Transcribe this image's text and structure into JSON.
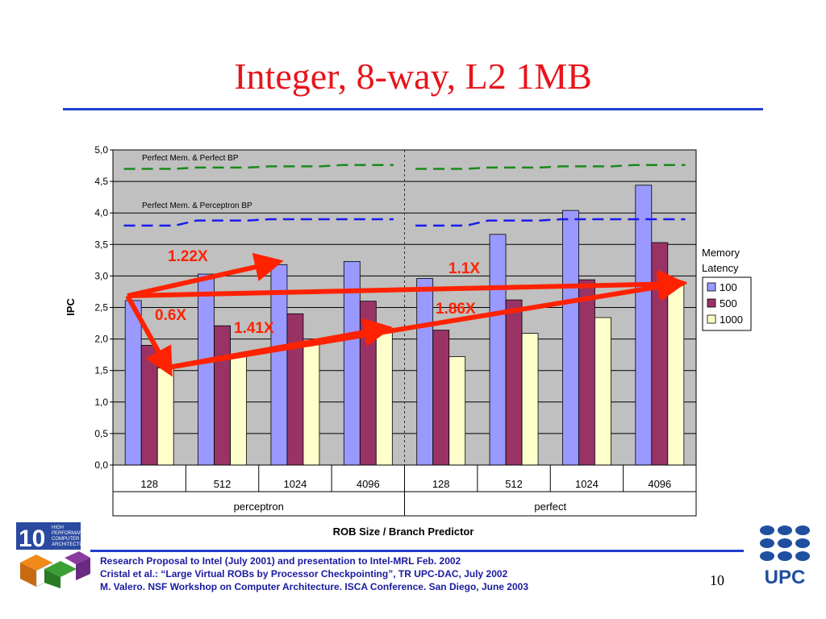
{
  "slide": {
    "title": "Integer, 8-way, L2 1MB",
    "page_number": "10",
    "footer_lines": [
      "Research Proposal  to Intel (July 2001) and  presentation to Intel-MRL Feb. 2002",
      "Cristal et al.: “Large Virtual ROBs by Processor Checkpointing”, TR UPC-DAC, July 2002",
      "M. Valero. NSF Workshop on Computer Architecture. ISCA Conference. San Diego, June 2003"
    ],
    "logo_left_text": [
      "HIGH",
      "PERFORMANCE",
      "COMPUTER",
      "ARCHITECTURE"
    ],
    "logo_left_number": "10",
    "logo_right_text": "UPC",
    "colors": {
      "title": "#e8141b",
      "rule": "#1f3fd0",
      "footer": "#1a1aa0"
    }
  },
  "chart_data": {
    "type": "bar",
    "xlabel": "ROB Size / Branch Predictor",
    "ylabel": "IPC",
    "ylim": [
      0,
      5
    ],
    "yticks": [
      "0,0",
      "0,5",
      "1,0",
      "1,5",
      "2,0",
      "2,5",
      "3,0",
      "3,5",
      "4,0",
      "4,5",
      "5,0"
    ],
    "grid": true,
    "groups": [
      {
        "label": "perceptron",
        "categories": [
          "128",
          "512",
          "1024",
          "4096"
        ]
      },
      {
        "label": "perfect",
        "categories": [
          "128",
          "512",
          "1024",
          "4096"
        ]
      }
    ],
    "legend": {
      "title": "Memory Latency",
      "position": "right"
    },
    "series": [
      {
        "name": "100",
        "color": "#9999ff",
        "values": [
          2.61,
          3.03,
          3.18,
          3.23,
          2.96,
          3.66,
          4.04,
          4.44
        ]
      },
      {
        "name": "500",
        "color": "#993366",
        "values": [
          1.9,
          2.21,
          2.4,
          2.6,
          2.14,
          2.62,
          2.94,
          3.53
        ]
      },
      {
        "name": "1000",
        "color": "#ffffcc",
        "values": [
          1.54,
          1.73,
          1.95,
          2.14,
          1.72,
          2.09,
          2.34,
          2.86
        ]
      }
    ],
    "reference_lines": [
      {
        "label": "Perfect Mem. & Perfect BP",
        "color": "#1a8a1a",
        "values": [
          4.7,
          4.72,
          4.74,
          4.76,
          4.7,
          4.72,
          4.74,
          4.76
        ]
      },
      {
        "label": "Perfect Mem. & Perceptron BP",
        "color": "#1a1aee",
        "values": [
          3.8,
          3.88,
          3.9,
          3.9,
          3.8,
          3.88,
          3.9,
          3.9
        ]
      }
    ],
    "annotations": [
      "1.22X",
      "0.6X",
      "1.41X",
      "1.1X",
      "1.86X"
    ],
    "annotation_color": "#ff2200"
  }
}
